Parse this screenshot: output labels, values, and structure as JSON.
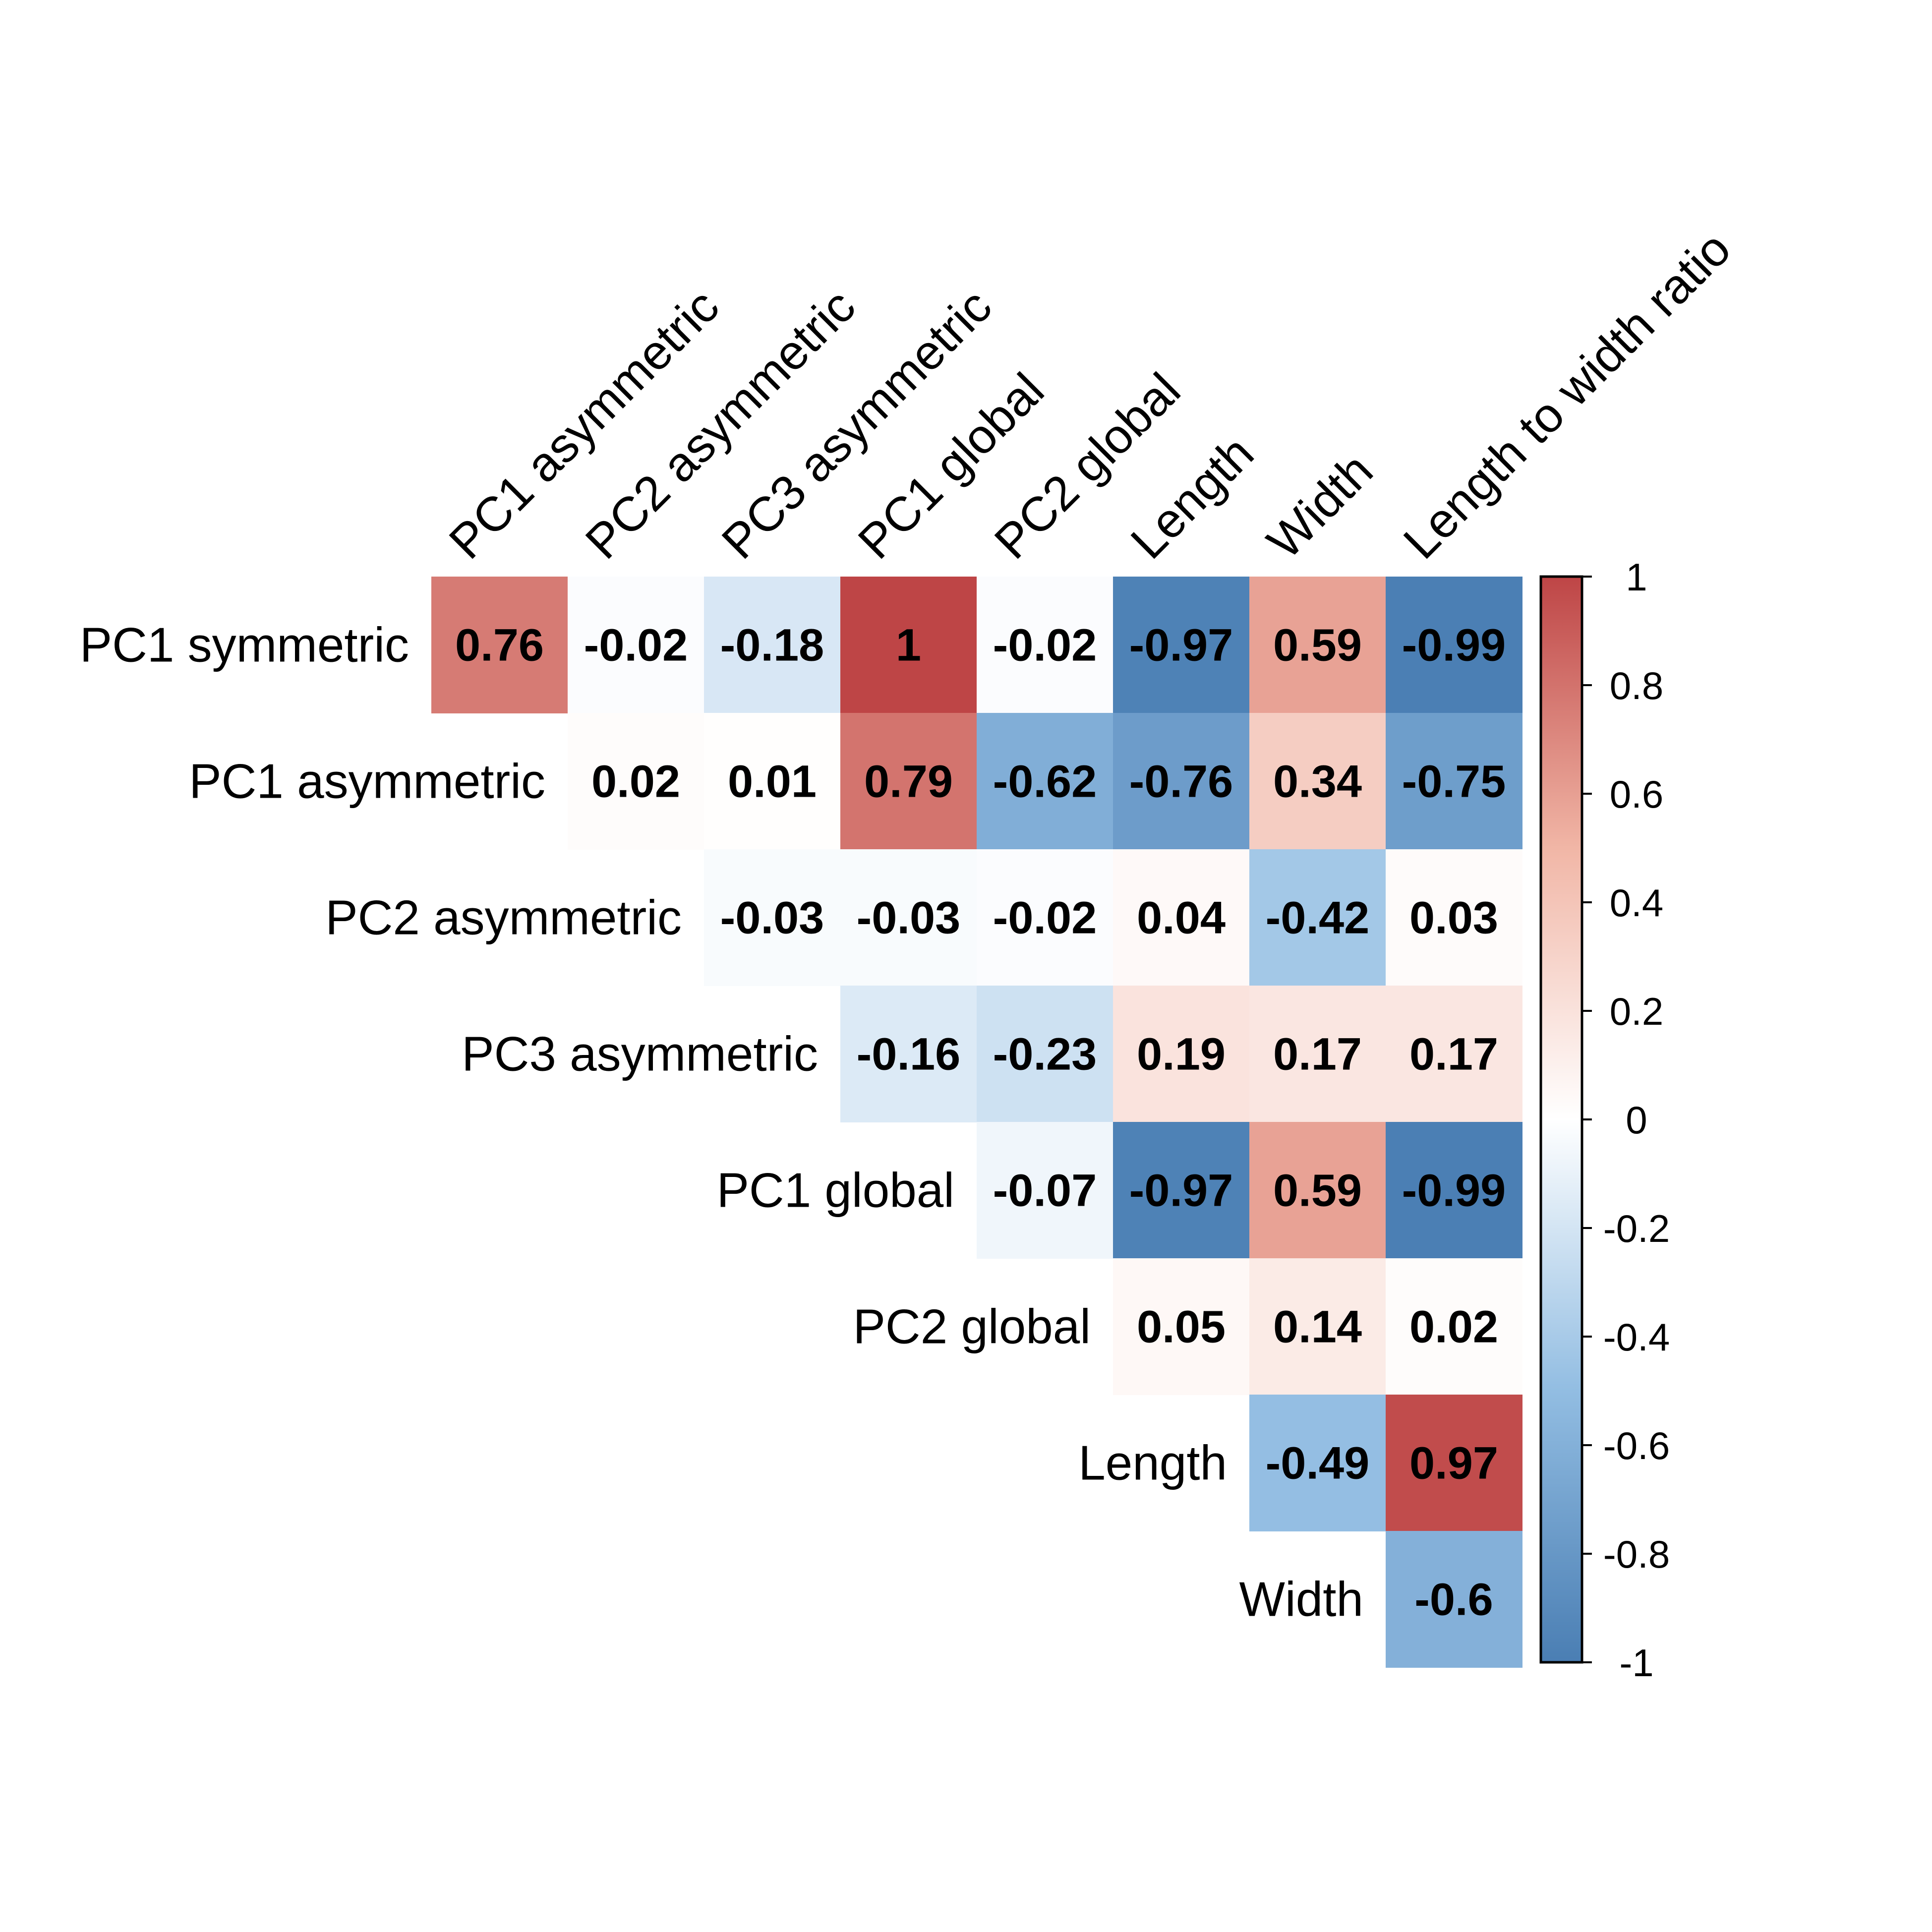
{
  "chart_data": {
    "type": "heatmap",
    "title": "",
    "row_labels": [
      "PC1 symmetric",
      "PC1 asymmetric",
      "PC2 asymmetric",
      "PC3 asymmetric",
      "PC1 global",
      "PC2 global",
      "Length",
      "Width"
    ],
    "col_labels": [
      "PC1 asymmetric",
      "PC2 asymmetric",
      "PC3 asymmetric",
      "PC1 global",
      "PC2 global",
      "Length",
      "Width",
      "Length to width ratio"
    ],
    "layout": "upper-triangle",
    "values": [
      [
        0.76,
        -0.02,
        -0.18,
        1,
        -0.02,
        -0.97,
        0.59,
        -0.99
      ],
      [
        null,
        0.02,
        0.01,
        0.79,
        -0.62,
        -0.76,
        0.34,
        -0.75
      ],
      [
        null,
        null,
        -0.03,
        -0.03,
        -0.02,
        0.04,
        -0.42,
        0.03
      ],
      [
        null,
        null,
        null,
        -0.16,
        -0.23,
        0.19,
        0.17,
        0.17
      ],
      [
        null,
        null,
        null,
        null,
        -0.07,
        -0.97,
        0.59,
        -0.99
      ],
      [
        null,
        null,
        null,
        null,
        null,
        0.05,
        0.14,
        0.02
      ],
      [
        null,
        null,
        null,
        null,
        null,
        null,
        -0.49,
        0.97
      ],
      [
        null,
        null,
        null,
        null,
        null,
        null,
        null,
        -0.6
      ]
    ],
    "value_labels": [
      [
        "0.76",
        "-0.02",
        "-0.18",
        "1",
        "-0.02",
        "-0.97",
        "0.59",
        "-0.99"
      ],
      [
        null,
        "0.02",
        "0.01",
        "0.79",
        "-0.62",
        "-0.76",
        "0.34",
        "-0.75"
      ],
      [
        null,
        null,
        "-0.03",
        "-0.03",
        "-0.02",
        "0.04",
        "-0.42",
        "0.03"
      ],
      [
        null,
        null,
        null,
        "-0.16",
        "-0.23",
        "0.19",
        "0.17",
        "0.17"
      ],
      [
        null,
        null,
        null,
        null,
        "-0.07",
        "-0.97",
        "0.59",
        "-0.99"
      ],
      [
        null,
        null,
        null,
        null,
        null,
        "0.05",
        "0.14",
        "0.02"
      ],
      [
        null,
        null,
        null,
        null,
        null,
        null,
        "-0.49",
        "0.97"
      ],
      [
        null,
        null,
        null,
        null,
        null,
        null,
        null,
        "-0.6"
      ]
    ],
    "colorbar": {
      "range": [
        -1,
        1
      ],
      "ticks": [
        1,
        0.8,
        0.6,
        0.4,
        0.2,
        0,
        -0.2,
        -0.4,
        -0.6,
        -0.8,
        -1
      ],
      "tick_labels": [
        "1",
        "0.8",
        "0.6",
        "0.4",
        "0.2",
        "0",
        "-0.2",
        "-0.4",
        "-0.6",
        "-0.8",
        "-1"
      ],
      "position": "right"
    },
    "colors": {
      "negative": "#4A7EB3",
      "mid_negative": "#92BDE2",
      "zero": "#FFFFFF",
      "mid_positive": "#F1B6A6",
      "positive": "#BE4546"
    },
    "grid": false,
    "legend": "none"
  }
}
